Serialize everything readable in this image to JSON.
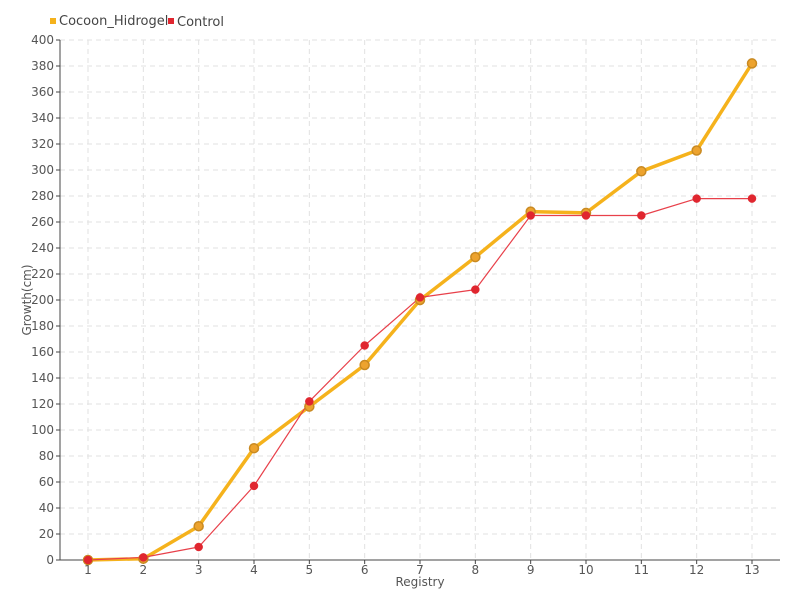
{
  "chart_data": {
    "type": "line",
    "title": "",
    "xlabel": "Registry",
    "ylabel": "Growth(cm)",
    "categories": [
      "1",
      "2",
      "3",
      "4",
      "5",
      "6",
      "7",
      "8",
      "9",
      "10",
      "11",
      "12",
      "13"
    ],
    "ylim": [
      0,
      400
    ],
    "yticks": [
      0,
      20,
      40,
      60,
      80,
      100,
      120,
      140,
      160,
      180,
      200,
      220,
      240,
      260,
      280,
      300,
      320,
      340,
      360,
      380,
      400
    ],
    "grid": true,
    "legend_position": "top-left",
    "series": [
      {
        "name": "Cocoon_Hidrogel",
        "color": "#f5b21c",
        "marker_fill": "#eda32e",
        "marker_stroke": "#c98a22",
        "values": [
          0,
          1,
          26,
          86,
          118,
          150,
          200,
          233,
          268,
          267,
          299,
          315,
          382
        ]
      },
      {
        "name": "Control",
        "color": "#e8404a",
        "marker_fill": "#e0262f",
        "marker_stroke": "#e0262f",
        "values": [
          0,
          2,
          10,
          57,
          122,
          165,
          202,
          208,
          265,
          265,
          265,
          278,
          278
        ]
      }
    ]
  }
}
